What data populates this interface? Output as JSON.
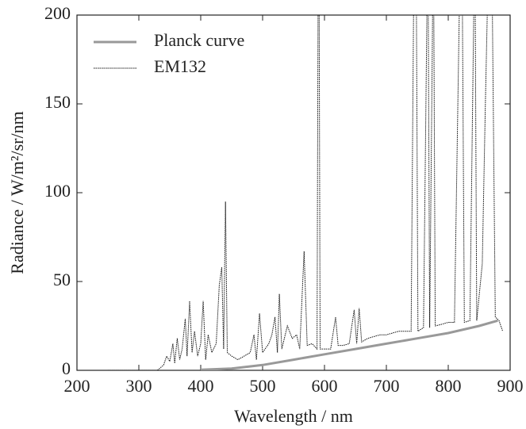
{
  "chart_data": {
    "type": "line",
    "xlabel": "Wavelength / nm",
    "ylabel": "Radiance / W/m²/sr/nm",
    "xlim": [
      200,
      900
    ],
    "ylim": [
      0,
      200
    ],
    "xticks": [
      200,
      300,
      400,
      500,
      600,
      700,
      800,
      900
    ],
    "yticks": [
      0,
      50,
      100,
      150,
      200
    ],
    "legend": "upper left",
    "series": [
      {
        "name": "Planck curve",
        "color": "#999999",
        "style": "solid",
        "x": [
          400,
          450,
          500,
          550,
          600,
          650,
          700,
          750,
          800,
          850,
          880
        ],
        "values": [
          0.3,
          1,
          3,
          6,
          9,
          12,
          15,
          18,
          21,
          25,
          28
        ]
      },
      {
        "name": "EM132",
        "color": "#111111",
        "style": "dotted",
        "x": [
          250,
          300,
          330,
          340,
          345,
          350,
          355,
          358,
          362,
          366,
          370,
          375,
          378,
          382,
          386,
          390,
          395,
          400,
          404,
          408,
          412,
          418,
          425,
          430,
          434,
          437,
          440,
          443,
          450,
          460,
          470,
          480,
          486,
          490,
          495,
          500,
          510,
          515,
          520,
          524,
          527,
          531,
          540,
          548,
          555,
          560,
          567,
          572,
          580,
          588,
          590,
          591,
          593,
          600,
          610,
          618,
          622,
          630,
          640,
          648,
          652,
          656,
          660,
          670,
          680,
          690,
          700,
          710,
          720,
          730,
          740,
          745,
          748,
          751,
          760,
          767,
          770,
          776,
          779,
          790,
          800,
          810,
          820,
          822,
          826,
          835,
          843,
          846,
          855,
          860,
          866,
          870,
          876,
          882,
          888
        ],
        "values": [
          0,
          0,
          0,
          3,
          8,
          5,
          15,
          4,
          18,
          6,
          12,
          29,
          8,
          39,
          10,
          22,
          8,
          15,
          39,
          6,
          20,
          10,
          15,
          48,
          58,
          12,
          95,
          10,
          8,
          6,
          8,
          10,
          20,
          6,
          32,
          10,
          15,
          20,
          30,
          10,
          43,
          12,
          25,
          18,
          20,
          12,
          67,
          14,
          15,
          12,
          250,
          250,
          12,
          12,
          12,
          30,
          14,
          14,
          15,
          34,
          15,
          35,
          16,
          18,
          19,
          20,
          20,
          21,
          22,
          22,
          22,
          250,
          250,
          22,
          24,
          250,
          24,
          250,
          25,
          26,
          27,
          27,
          250,
          250,
          27,
          28,
          250,
          28,
          60,
          150,
          250,
          250,
          30,
          28,
          22
        ]
      }
    ]
  }
}
